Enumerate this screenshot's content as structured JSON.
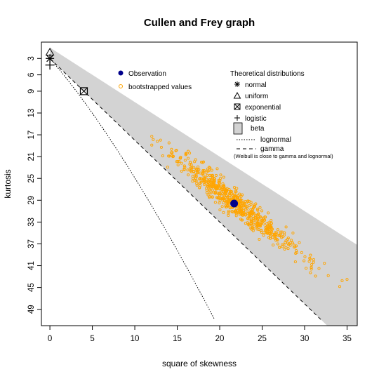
{
  "chart_data": {
    "type": "scatter",
    "title": "Cullen and Frey graph",
    "xlabel": "square of skewness",
    "ylabel": "kurtosis",
    "xlim": [
      -1,
      36.2
    ],
    "ylim": [
      52,
      0
    ],
    "y_axis_reversed": true,
    "x_ticks": [
      "0",
      "5",
      "10",
      "15",
      "20",
      "25",
      "30",
      "35"
    ],
    "y_ticks": [
      "3",
      "6",
      "9",
      "13",
      "17",
      "21",
      "25",
      "29",
      "33",
      "37",
      "41",
      "45",
      "49"
    ],
    "colors": {
      "observation": "#00008b",
      "bootstrap": "#ffa500",
      "beta_region": "#d3d3d3"
    },
    "observation": {
      "x": 21.7,
      "y": 29.6
    },
    "bootstrap_n": 650,
    "bootstrap_center": {
      "x": 21.5,
      "y": 29.1
    },
    "bootstrap_x_range": [
      12,
      35
    ],
    "theoretical": {
      "normal": {
        "x": 0,
        "y": 3
      },
      "uniform": {
        "x": 0,
        "y": 1.8
      },
      "exponential": {
        "x": 4,
        "y": 9
      },
      "logistic": {
        "x": 0,
        "y": 4.2
      },
      "beta_region_x_max": 36.2,
      "lognormal_curve_x_max": 19.4,
      "gamma_line_x_max": 32
    },
    "legend": {
      "observation": "Observation",
      "bootstrap": "bootstrapped values",
      "theoretical_title": "Theoretical distributions",
      "normal": "normal",
      "uniform": "uniform",
      "exponential": "exponential",
      "logistic": "logistic",
      "beta": "beta",
      "lognormal": "lognormal",
      "gamma": "gamma",
      "note": "(Weibull is close to gamma and lognormal)"
    }
  }
}
